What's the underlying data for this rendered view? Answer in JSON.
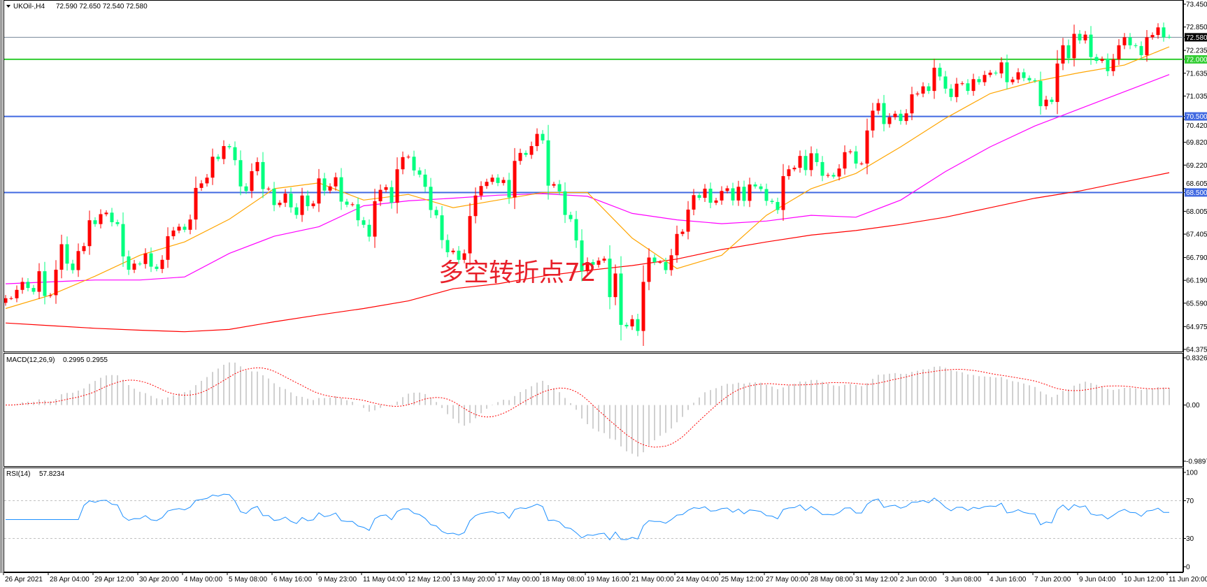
{
  "header": {
    "symbol": "UKOil-,H4",
    "ohlc_text": "72.590 72.650 72.540 72.580"
  },
  "annotation": "多空转折点72",
  "colors": {
    "up_candle": "#FF0000",
    "down_candle": "#00FF7F",
    "ma_fast": "#FFA500",
    "ma_mid": "#FF00FF",
    "ma_slow": "#FF0000",
    "level_green": "#32CD32",
    "level_blue": "#4169E1",
    "current_price_line": "#778899",
    "macd_hist": "#C0C0C0",
    "macd_signal": "#FF0000",
    "rsi_line": "#1E90FF"
  },
  "price_axis": {
    "labels": [
      "73.450",
      "72.850",
      "72.235",
      "71.635",
      "71.035",
      "70.420",
      "69.820",
      "69.220",
      "68.605",
      "68.005",
      "67.405",
      "66.790",
      "66.190",
      "65.590",
      "64.975",
      "64.375"
    ],
    "current_price": {
      "value": 72.58,
      "label": "72.580"
    },
    "levels": [
      {
        "value": 72.0,
        "label": "72.000",
        "color": "#32CD32"
      },
      {
        "value": 70.5,
        "label": "70.500",
        "color": "#4169E1"
      },
      {
        "value": 68.5,
        "label": "68.500",
        "color": "#4169E1"
      }
    ]
  },
  "time_axis": {
    "labels": [
      "26 Apr 2021",
      "28 Apr 04:00",
      "29 Apr 12:00",
      "30 Apr 20:00",
      "4 May 00:00",
      "5 May 08:00",
      "6 May 16:00",
      "9 May 23:00",
      "11 May 04:00",
      "12 May 12:00",
      "13 May 20:00",
      "17 May 00:00",
      "18 May 08:00",
      "19 May 16:00",
      "21 May 00:00",
      "24 May 04:00",
      "25 May 12:00",
      "27 May 00:00",
      "28 May 08:00",
      "31 May 12:00",
      "2 Jun 00:00",
      "3 Jun 08:00",
      "4 Jun 16:00",
      "7 Jun 20:00",
      "9 Jun 04:00",
      "10 Jun 12:00",
      "11 Jun 20:00"
    ]
  },
  "chart_data": [
    {
      "type": "candlestick",
      "title": "UKOil-,H4",
      "timeframe": "H4",
      "ylim": [
        64.375,
        73.45
      ],
      "last_bar": {
        "open": 72.59,
        "high": 72.65,
        "low": 72.54,
        "close": 72.58
      },
      "first_open": 65.6,
      "close": [
        65.72,
        65.72,
        65.94,
        66.15,
        65.99,
        65.89,
        66.43,
        65.78,
        65.8,
        66.47,
        67.14,
        66.63,
        66.46,
        66.96,
        67.09,
        67.77,
        67.67,
        67.93,
        67.97,
        67.72,
        67.67,
        66.82,
        66.47,
        66.63,
        66.62,
        66.9,
        66.55,
        66.49,
        66.73,
        67.35,
        67.5,
        67.6,
        67.52,
        67.79,
        68.62,
        68.74,
        68.89,
        69.44,
        69.38,
        69.72,
        69.69,
        69.35,
        68.66,
        68.54,
        69.06,
        69.3,
        68.59,
        68.6,
        68.17,
        68.23,
        68.47,
        68.11,
        67.91,
        68.42,
        68.14,
        68.21,
        68.87,
        68.55,
        68.66,
        68.9,
        68.26,
        68.18,
        68.19,
        67.77,
        67.65,
        67.34,
        68.27,
        68.57,
        68.64,
        68.23,
        69.11,
        69.43,
        69.44,
        69.08,
        68.97,
        68.65,
        68.04,
        67.9,
        67.25,
        66.93,
        66.97,
        66.73,
        66.9,
        67.88,
        68.42,
        68.67,
        68.78,
        68.89,
        68.75,
        68.83,
        68.37,
        69.33,
        69.54,
        69.49,
        69.72,
        70.04,
        69.87,
        68.68,
        68.72,
        68.53,
        67.91,
        67.8,
        67.24,
        66.43,
        66.67,
        66.6,
        66.71,
        66.76,
        65.75,
        66.37,
        65.02,
        64.98,
        65.17,
        64.86,
        66.15,
        66.79,
        66.67,
        66.67,
        66.46,
        66.85,
        67.41,
        67.47,
        68.05,
        68.43,
        68.36,
        68.6,
        68.23,
        68.29,
        68.54,
        68.61,
        68.29,
        68.65,
        68.28,
        68.71,
        68.66,
        68.59,
        68.28,
        68.25,
        68.04,
        68.93,
        69.11,
        69.15,
        69.46,
        69.09,
        69.53,
        69.3,
        68.94,
        68.96,
        68.92,
        69.13,
        69.56,
        69.58,
        69.26,
        69.26,
        70.13,
        70.65,
        70.85,
        70.3,
        70.48,
        70.57,
        70.38,
        70.58,
        71.08,
        71.1,
        71.29,
        71.17,
        71.78,
        71.55,
        71.23,
        71.01,
        71.36,
        71.37,
        71.17,
        71.48,
        71.4,
        71.59,
        71.65,
        71.63,
        71.92,
        71.4,
        71.47,
        71.66,
        71.51,
        71.45,
        71.43,
        70.77,
        70.94,
        70.88,
        71.89,
        72.37,
        72.03,
        72.67,
        72.5,
        72.65,
        72.06,
        71.96,
        72.01,
        71.69,
        72.0,
        72.37,
        72.58,
        72.37,
        72.35,
        72.11,
        72.58,
        72.64,
        72.84,
        72.58,
        72.58
      ],
      "moving_averages_every_8_bars": {
        "fast": [
          65.45,
          65.8,
          66.3,
          66.85,
          67.2,
          67.8,
          68.6,
          68.75,
          68.3,
          68.45,
          68.1,
          68.3,
          68.5,
          68.5,
          67.3,
          66.5,
          66.85,
          67.9,
          68.6,
          69.0,
          69.7,
          70.45,
          71.1,
          71.42,
          71.65,
          71.85,
          72.33
        ],
        "mid": [
          66.1,
          66.15,
          66.2,
          66.2,
          66.28,
          66.9,
          67.35,
          67.6,
          68.15,
          68.28,
          68.35,
          68.43,
          68.47,
          68.4,
          67.95,
          67.78,
          67.68,
          67.75,
          67.9,
          67.85,
          68.3,
          69.05,
          69.7,
          70.25,
          70.7,
          71.15,
          71.6
        ],
        "slow": [
          65.07,
          65.0,
          64.93,
          64.88,
          64.84,
          64.9,
          65.1,
          65.28,
          65.45,
          65.65,
          65.97,
          66.1,
          66.3,
          66.45,
          66.58,
          66.75,
          67.0,
          67.2,
          67.38,
          67.5,
          67.66,
          67.85,
          68.1,
          68.35,
          68.54,
          68.78,
          69.02
        ]
      }
    },
    {
      "type": "bar",
      "title": "MACD(12,26,9)",
      "values_text": "0.2995 0.2955",
      "params": [
        12,
        26,
        9
      ],
      "ylim": [
        -0.9897,
        0.8326
      ],
      "tick_labels": [
        "0.8326",
        "0.00",
        "-0.9897"
      ]
    },
    {
      "type": "line",
      "title": "RSI(14)",
      "values_text": "57.8234",
      "period": 14,
      "ylim": [
        0,
        100
      ],
      "levels": [
        70,
        30
      ],
      "tick_labels": [
        "100",
        "70",
        "30",
        "0"
      ]
    }
  ]
}
